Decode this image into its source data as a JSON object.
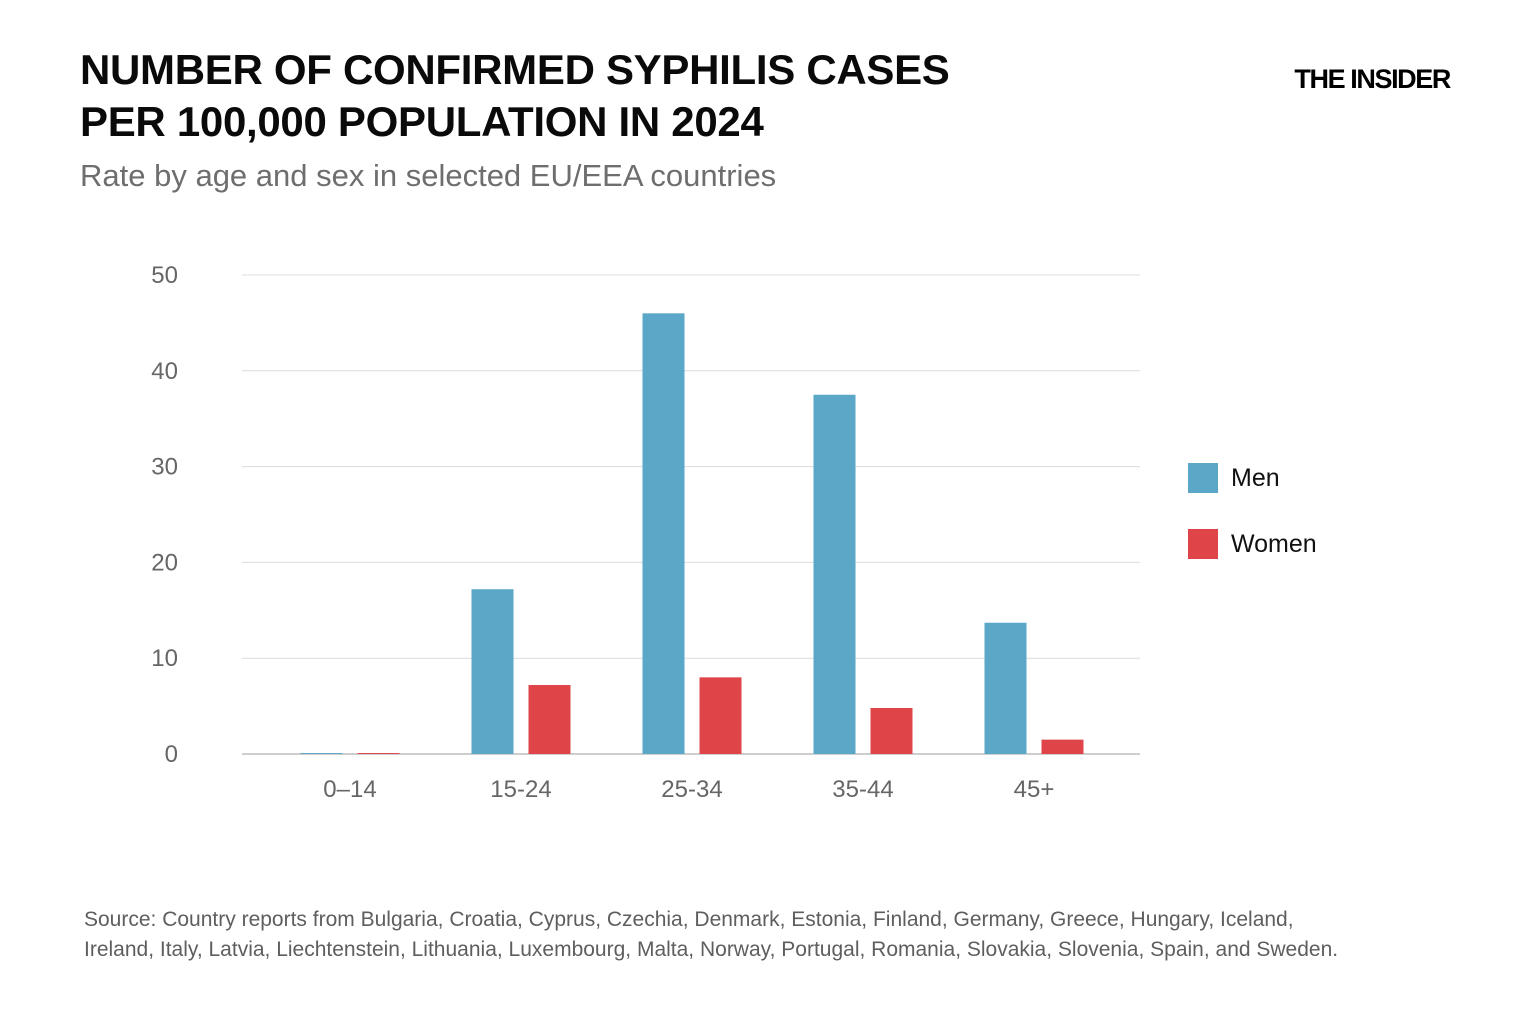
{
  "header": {
    "title_line1": "NUMBER OF CONFIRMED SYPHILIS CASES",
    "title_line2": "PER 100,000 POPULATION IN 2024",
    "subtitle": "Rate by age and sex in selected EU/EEA countries",
    "brand": "THE INSIDER"
  },
  "colors": {
    "men": "#5aa7c8",
    "women": "#df4448",
    "grid": "#dcdcdc",
    "axis": "#bdbdbd"
  },
  "chart_data": {
    "type": "bar",
    "title": "NUMBER OF CONFIRMED SYPHILIS CASES PER 100,000 POPULATION IN 2024",
    "subtitle": "Rate by age and sex in selected EU/EEA countries",
    "categories": [
      "0–14",
      "15-24",
      "25-34",
      "35-44",
      "45+"
    ],
    "series": [
      {
        "name": "Men",
        "values": [
          0.1,
          17.2,
          46.0,
          37.5,
          13.7
        ]
      },
      {
        "name": "Women",
        "values": [
          0.1,
          7.2,
          8.0,
          4.8,
          1.5
        ]
      }
    ],
    "yticks": [
      0,
      10,
      20,
      30,
      40,
      50
    ],
    "ylim": [
      0,
      50
    ],
    "grid": true,
    "legend": "right"
  },
  "footer": {
    "source_line1": "Source: Country reports from Bulgaria, Croatia, Cyprus, Czechia, Denmark, Estonia, Finland, Germany, Greece, Hungary, Iceland,",
    "source_line2": "Ireland, Italy, Latvia, Liechtenstein, Lithuania, Luxembourg, Malta, Norway, Portugal, Romania, Slovakia, Slovenia, Spain, and Sweden."
  }
}
